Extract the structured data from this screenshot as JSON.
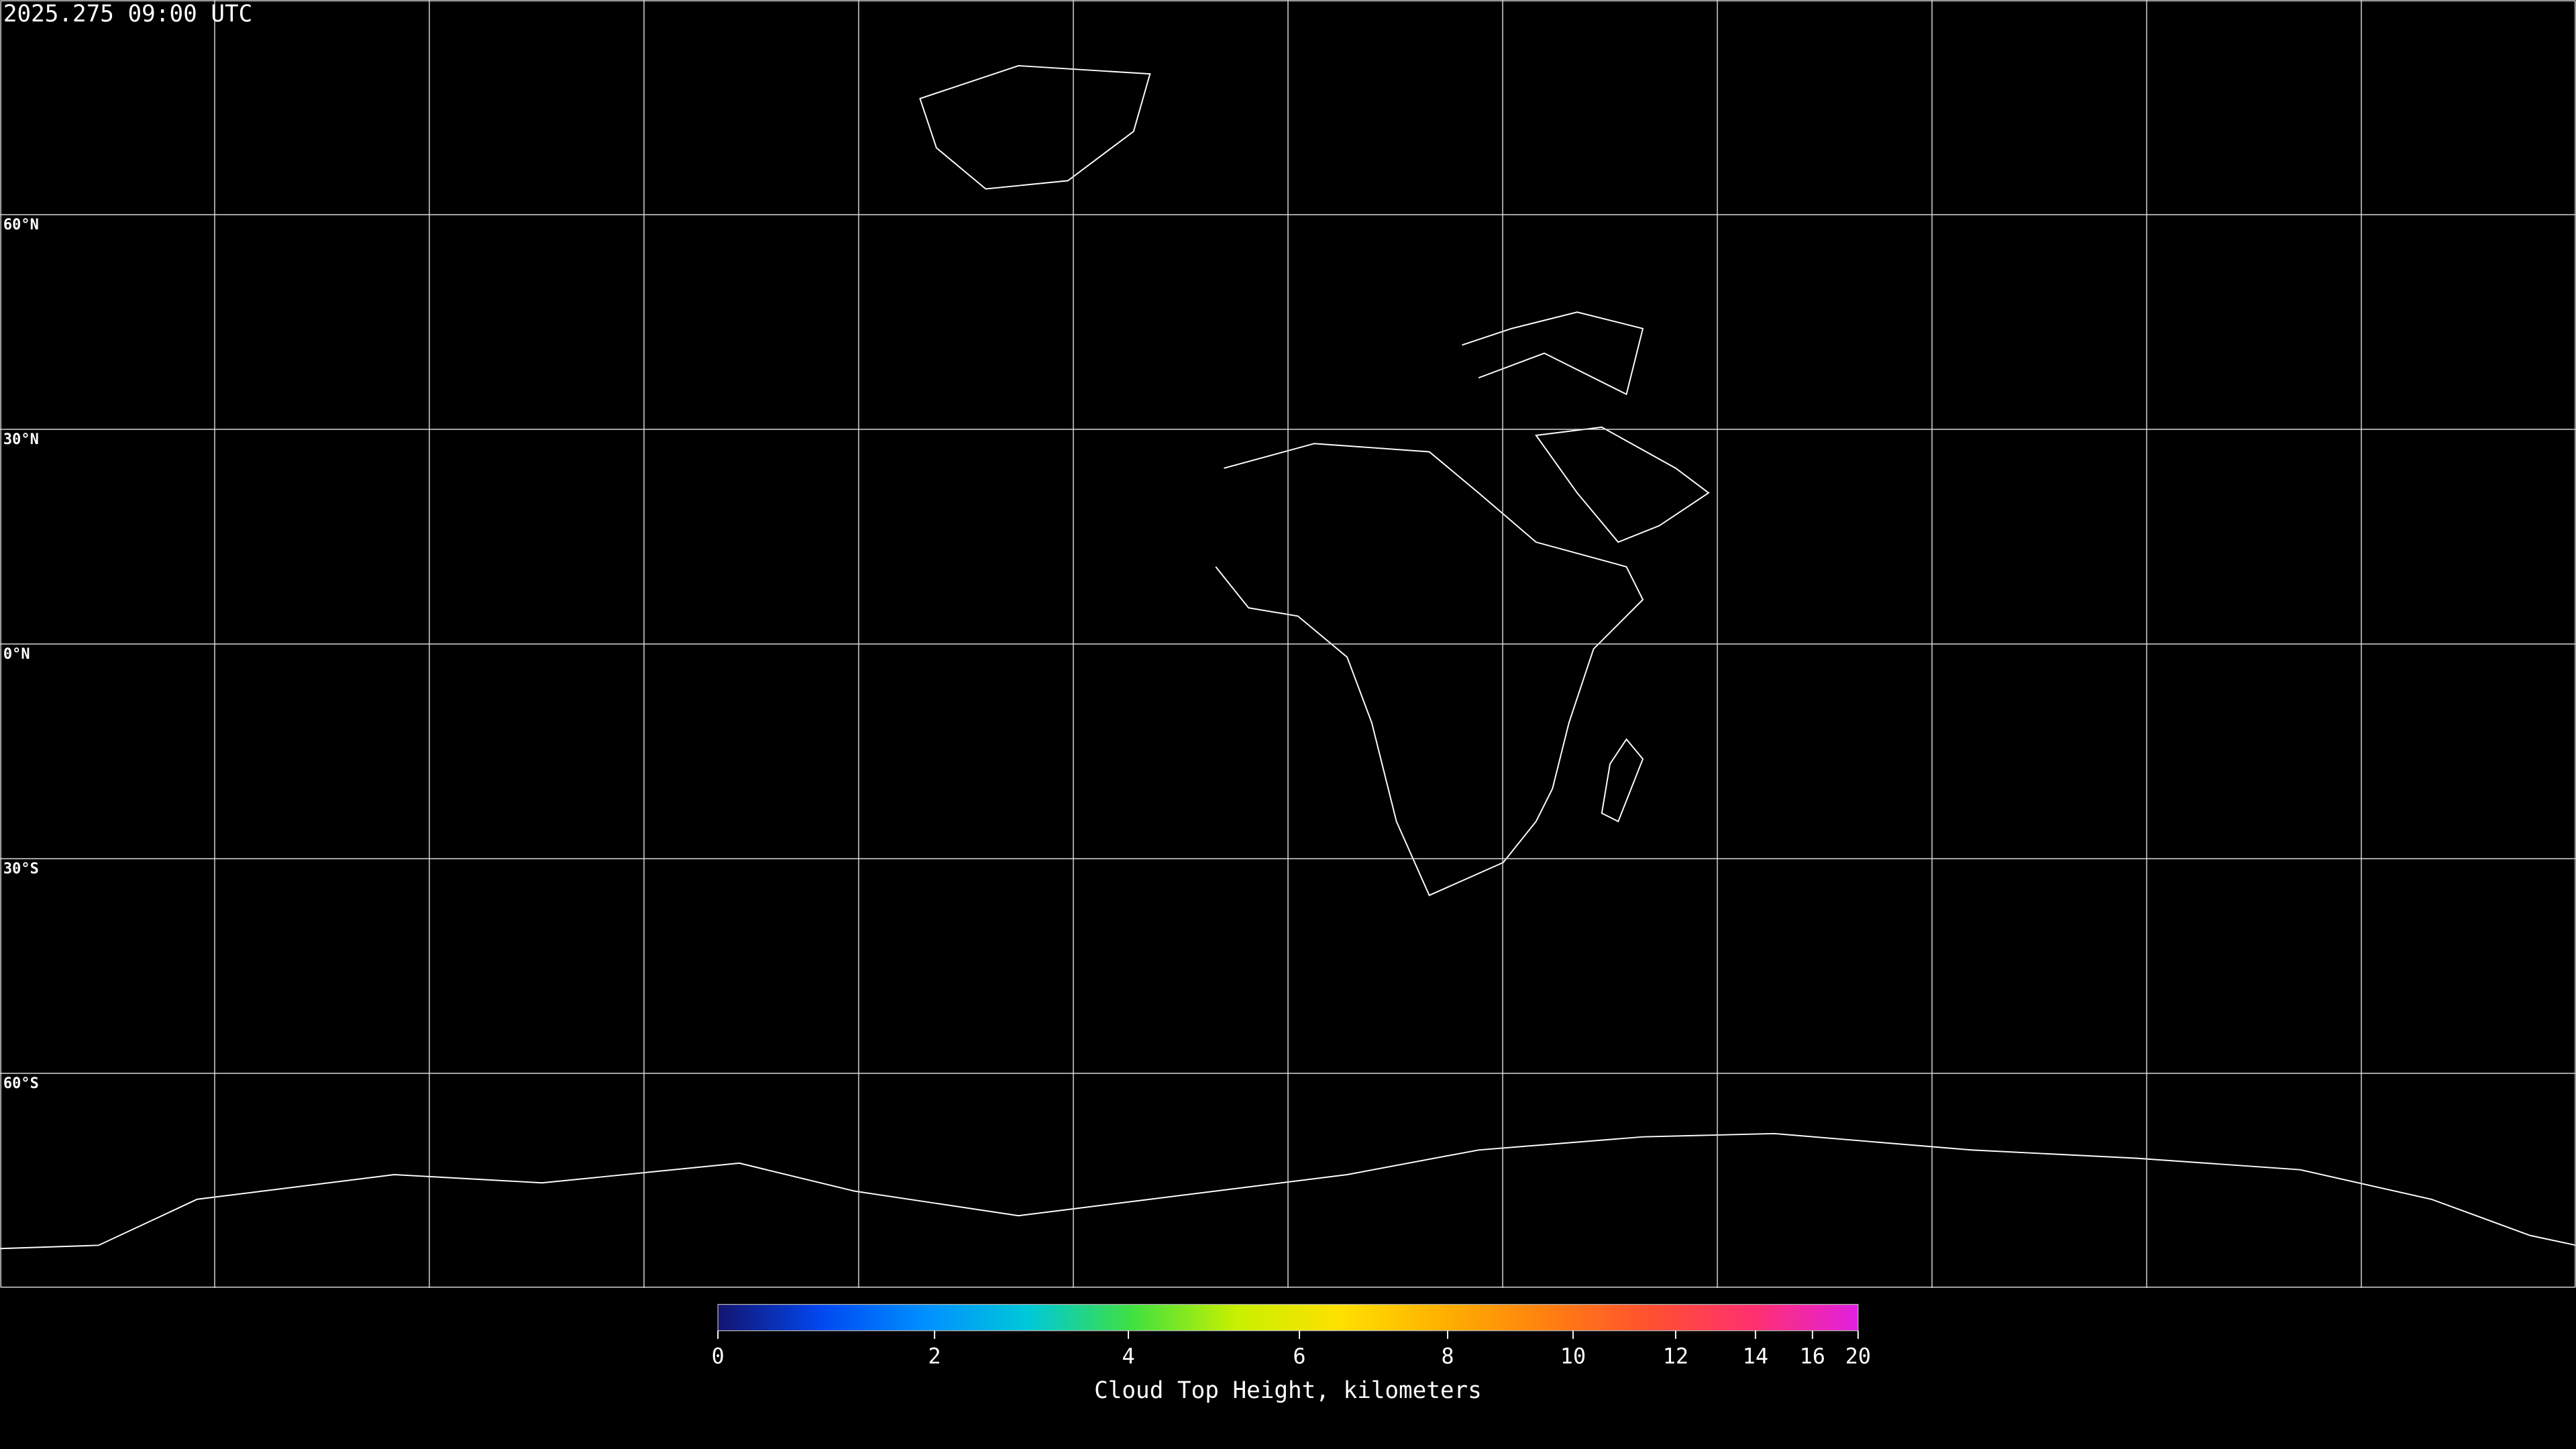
{
  "header": {
    "timestamp": "2025.275 09:00 UTC"
  },
  "map": {
    "lat_labels": [
      "60°N",
      "30°N",
      "0°N",
      "30°S",
      "60°S"
    ]
  },
  "colorbar": {
    "label": "Cloud Top Height, kilometers",
    "clim": [
      0,
      20
    ],
    "ticks": [
      0,
      2,
      4,
      6,
      8,
      10,
      12,
      14,
      16,
      20
    ],
    "scale": "ease-out",
    "colors": [
      "#141470",
      "#0048f0",
      "#0090ff",
      "#00c8d8",
      "#40e040",
      "#c8f000",
      "#ffe000",
      "#ffb000",
      "#ff8010",
      "#ff5030",
      "#ff3070",
      "#e020e0"
    ]
  }
}
